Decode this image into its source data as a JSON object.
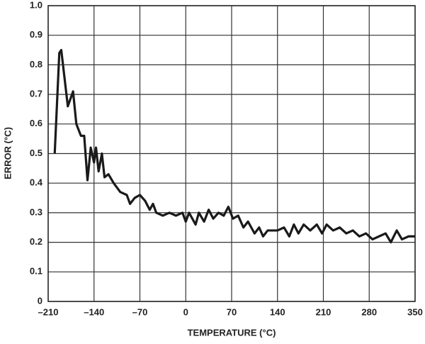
{
  "chart_data": {
    "type": "line",
    "x_label": "TEMPERATURE (°C)",
    "y_label": "ERROR (°C)",
    "x": [
      -200,
      -193,
      -190,
      -180,
      -172,
      -167,
      -160,
      -155,
      -150,
      -145,
      -140,
      -137,
      -133,
      -128,
      -124,
      -118,
      -110,
      -100,
      -90,
      -85,
      -78,
      -70,
      -62,
      -55,
      -50,
      -45,
      -35,
      -25,
      -15,
      -5,
      0,
      5,
      15,
      20,
      28,
      35,
      42,
      50,
      58,
      65,
      72,
      80,
      88,
      95,
      105,
      112,
      118,
      125,
      140,
      150,
      158,
      165,
      172,
      180,
      190,
      200,
      208,
      215,
      225,
      235,
      245,
      255,
      265,
      275,
      285,
      295,
      305,
      313,
      322,
      330,
      340,
      350
    ],
    "series": [
      {
        "name": "Error",
        "color": "#1a1a1a",
        "values": [
          0.5,
          0.84,
          0.85,
          0.66,
          0.71,
          0.6,
          0.56,
          0.56,
          0.41,
          0.52,
          0.47,
          0.52,
          0.44,
          0.5,
          0.42,
          0.43,
          0.4,
          0.37,
          0.36,
          0.33,
          0.35,
          0.36,
          0.34,
          0.31,
          0.33,
          0.3,
          0.29,
          0.3,
          0.29,
          0.3,
          0.27,
          0.3,
          0.26,
          0.3,
          0.27,
          0.31,
          0.28,
          0.3,
          0.29,
          0.32,
          0.28,
          0.29,
          0.25,
          0.27,
          0.23,
          0.25,
          0.22,
          0.24,
          0.24,
          0.25,
          0.22,
          0.26,
          0.23,
          0.26,
          0.24,
          0.26,
          0.23,
          0.26,
          0.24,
          0.25,
          0.23,
          0.24,
          0.22,
          0.23,
          0.21,
          0.22,
          0.23,
          0.2,
          0.24,
          0.21,
          0.22,
          0.22
        ]
      }
    ],
    "xlim": [
      -210,
      350
    ],
    "xticks": [
      {
        "value": -210,
        "label": "–210"
      },
      {
        "value": -140,
        "label": "–140"
      },
      {
        "value": -70,
        "label": "–70"
      },
      0,
      70,
      140,
      210,
      280,
      350
    ],
    "ylim": [
      0,
      1
    ],
    "yticks": [
      0,
      0.1,
      0.2,
      0.3,
      0.4,
      0.5,
      0.6,
      0.7,
      0.8,
      0.9,
      {
        "value": 1,
        "label": "1.0"
      }
    ],
    "grid": true
  }
}
